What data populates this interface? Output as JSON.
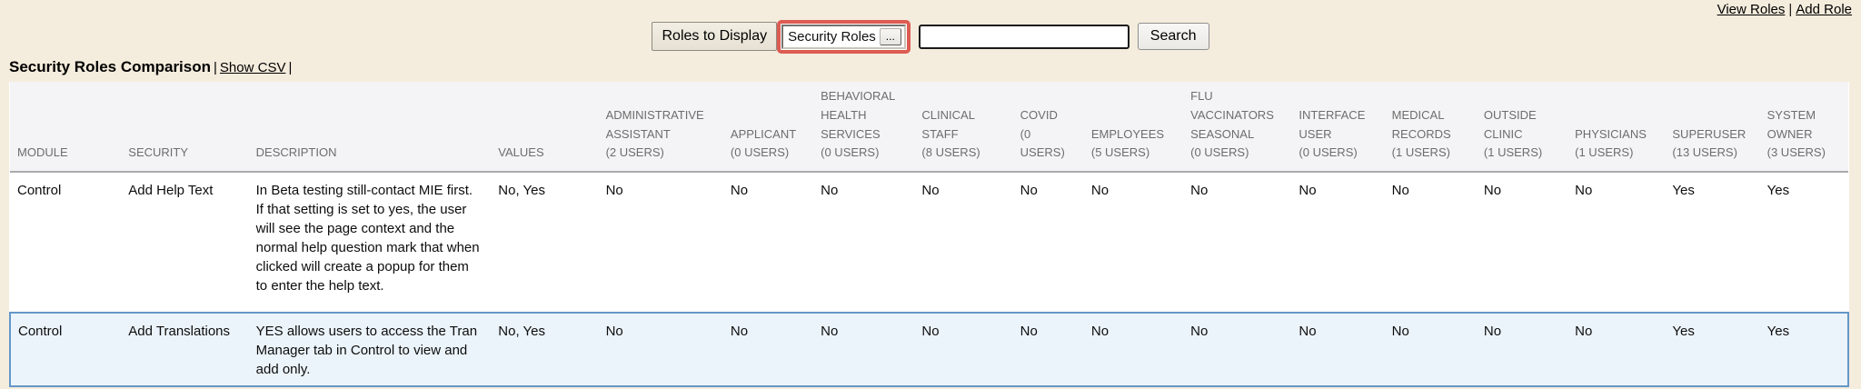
{
  "colors": {
    "page_bg": "#f4ecdd",
    "filter_highlight_border": "#dc5b52",
    "selected_row_bg": "#ecf4fb",
    "selected_row_border": "#6497c8",
    "header_bg": "#f4f4f6",
    "header_text": "#6d6d6d"
  },
  "top_links": {
    "view_roles": "View Roles",
    "separator": "|",
    "add_role": "Add Role"
  },
  "toolbar": {
    "roles_to_display_label": "Roles to Display",
    "role_filter_value": "Security Roles",
    "browse_button_label": "...",
    "search_input_value": "",
    "search_button_label": "Search"
  },
  "heading": {
    "title": "Security Roles Comparison",
    "separator": "|",
    "show_csv_label": "Show CSV"
  },
  "table": {
    "columns": [
      "MODULE",
      "SECURITY",
      "DESCRIPTION",
      "VALUES"
    ],
    "role_columns": [
      {
        "name": "ADMINISTRATIVE ASSISTANT",
        "users": "(2 USERS)"
      },
      {
        "name": "APPLICANT",
        "users": "(0 USERS)"
      },
      {
        "name": "BEHAVIORAL HEALTH SERVICES",
        "users": "(0 USERS)"
      },
      {
        "name": "CLINICAL STAFF",
        "users": "(8 USERS)"
      },
      {
        "name": "COVID",
        "users": "(0 USERS)"
      },
      {
        "name": "EMPLOYEES",
        "users": "(5 USERS)"
      },
      {
        "name": "FLU VACCINATORS SEASONAL",
        "users": "(0 USERS)"
      },
      {
        "name": "INTERFACE USER",
        "users": "(0 USERS)"
      },
      {
        "name": "MEDICAL RECORDS",
        "users": "(1 USERS)"
      },
      {
        "name": "OUTSIDE CLINIC",
        "users": "(1 USERS)"
      },
      {
        "name": "PHYSICIANS",
        "users": "(1 USERS)"
      },
      {
        "name": "SUPERUSER",
        "users": "(13 USERS)"
      },
      {
        "name": "SYSTEM OWNER",
        "users": "(3 USERS)"
      }
    ],
    "rows": [
      {
        "module": "Control",
        "security": "Add Help Text",
        "description": "In Beta testing still-contact MIE first. If that setting is set to yes, the user will see the page context and the normal help question mark that when clicked will create a popup for them to enter the help text.",
        "values": "No, Yes",
        "role_values": [
          "No",
          "No",
          "No",
          "No",
          "No",
          "No",
          "No",
          "No",
          "No",
          "No",
          "No",
          "Yes",
          "Yes"
        ],
        "highlighted": false
      },
      {
        "module": "Control",
        "security": "Add Translations",
        "description": "YES allows users to access the Tran Manager tab in Control to view and add only.",
        "values": "No, Yes",
        "role_values": [
          "No",
          "No",
          "No",
          "No",
          "No",
          "No",
          "No",
          "No",
          "No",
          "No",
          "No",
          "Yes",
          "Yes"
        ],
        "highlighted": true
      }
    ]
  }
}
